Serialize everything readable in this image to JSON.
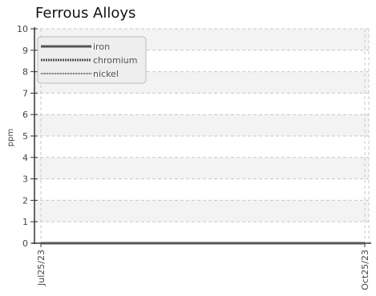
{
  "chart_data": {
    "type": "line",
    "title": "Ferrous Alloys",
    "xlabel": "",
    "ylabel": "ppm",
    "x_ticks": [
      "Jul25/23",
      "Oct25/23"
    ],
    "xlim": [
      "Jul25/23",
      "Oct25/23"
    ],
    "ylim": [
      0,
      10
    ],
    "y_ticks": [
      0,
      1,
      2,
      3,
      4,
      5,
      6,
      7,
      8,
      9,
      10
    ],
    "grid": true,
    "legend_position": "top-left",
    "series": [
      {
        "name": "iron",
        "x": [
          "Jul25/23",
          "Oct25/23"
        ],
        "values": [
          0,
          0
        ],
        "line_style": "solid",
        "color": "#555555"
      },
      {
        "name": "chromium",
        "x": [
          "Jul25/23",
          "Oct25/23"
        ],
        "values": [
          0,
          0
        ],
        "line_style": "dotted",
        "color": "#555555"
      },
      {
        "name": "nickel",
        "x": [
          "Jul25/23",
          "Oct25/23"
        ],
        "values": [
          0,
          0
        ],
        "line_style": "thin-dotted",
        "color": "#555555"
      }
    ]
  },
  "colors": {
    "series": "#555555",
    "axis": "#333333",
    "grid": "#c8c8c8",
    "band": "#f3f3f3",
    "text": "#444444",
    "title": "#111111",
    "legend_bg": "#eeeeee",
    "legend_border": "#bbbbbb"
  }
}
